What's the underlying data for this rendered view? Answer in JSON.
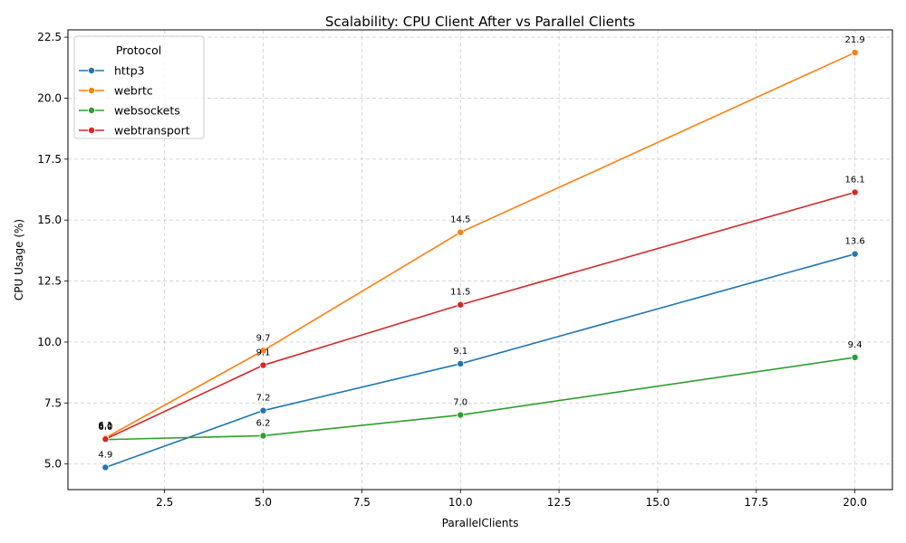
{
  "chart_data": {
    "type": "line",
    "title": "Scalability: CPU Client After vs Parallel Clients",
    "xlabel": "ParallelClients",
    "ylabel": "CPU Usage (%)",
    "xlim": [
      0.05,
      20.95
    ],
    "ylim": [
      3.95,
      22.8
    ],
    "x_ticks": [
      2.5,
      5.0,
      7.5,
      10.0,
      12.5,
      15.0,
      17.5,
      20.0
    ],
    "x_tick_labels": [
      "2.5",
      "5.0",
      "7.5",
      "10.0",
      "12.5",
      "15.0",
      "17.5",
      "20.0"
    ],
    "y_ticks": [
      5.0,
      7.5,
      10.0,
      12.5,
      15.0,
      17.5,
      20.0,
      22.5
    ],
    "y_tick_labels": [
      "5.0",
      "7.5",
      "10.0",
      "12.5",
      "15.0",
      "17.5",
      "20.0",
      "22.5"
    ],
    "grid": true,
    "legend": {
      "title": "Protocol",
      "placement": "top-left"
    },
    "x": [
      1,
      5,
      10,
      20
    ],
    "series": [
      {
        "name": "http3",
        "color": "#1f77b4",
        "values": [
          4.86,
          7.19,
          9.11,
          13.61
        ],
        "labels": [
          "4.9",
          "7.2",
          "9.1",
          "13.6"
        ]
      },
      {
        "name": "webrtc",
        "color": "#ff7f0e",
        "values": [
          6.07,
          9.65,
          14.5,
          21.87
        ],
        "labels": [
          "6.1",
          "9.7",
          "14.5",
          "21.9"
        ]
      },
      {
        "name": "websockets",
        "color": "#2ca02c",
        "values": [
          6.0,
          6.16,
          7.01,
          9.37
        ],
        "labels": [
          "6.0",
          "6.2",
          "7.0",
          "9.4"
        ]
      },
      {
        "name": "webtransport",
        "color": "#d62728",
        "values": [
          6.02,
          9.05,
          11.53,
          16.14
        ],
        "labels": [
          "6.0",
          "9.1",
          "11.5",
          "16.1"
        ]
      }
    ]
  }
}
